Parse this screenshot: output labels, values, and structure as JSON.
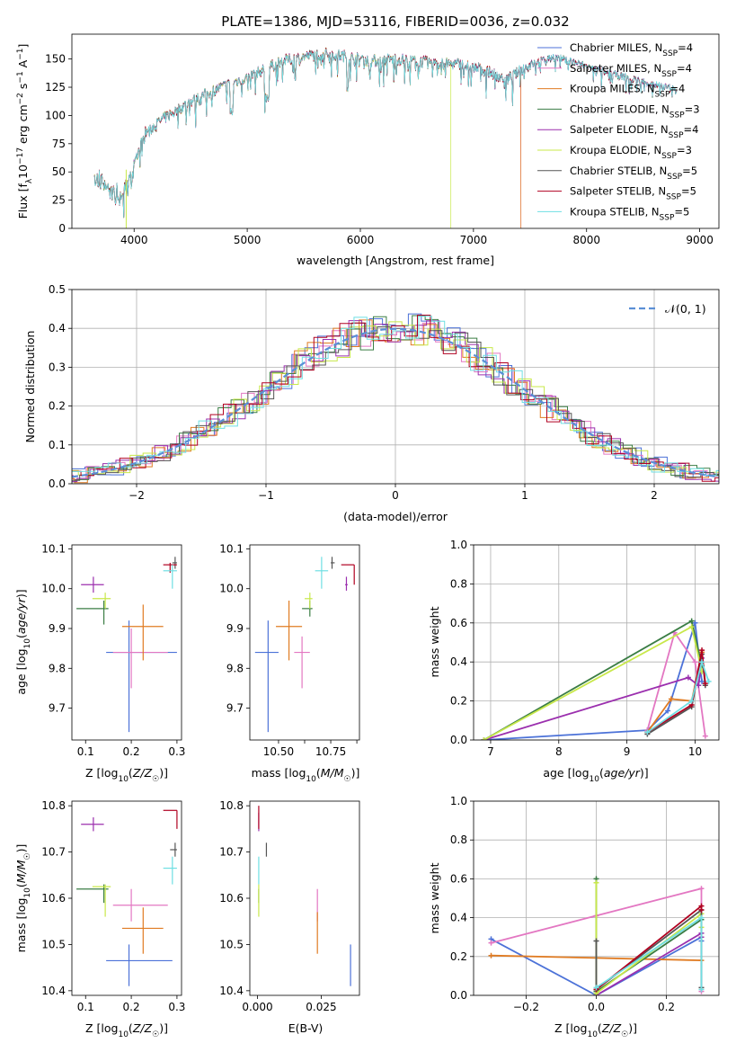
{
  "title": "PLATE=1386, MJD=53116, FIBERID=0036, z=0.032",
  "colors": {
    "Chabrier MILES": "#4c72d8",
    "Salpeter MILES": "#e377c2",
    "Kroupa MILES": "#e07b22",
    "Chabrier ELODIE": "#3a7d44",
    "Salpeter ELODIE": "#9b2fae",
    "Kroupa ELODIE": "#c8e84a",
    "Chabrier STELIB": "#555555",
    "Salpeter STELIB": "#b00020",
    "Kroupa STELIB": "#6fdfe3",
    "normal": "#5b8fd6"
  },
  "chart_data": [
    {
      "id": "spectrum",
      "type": "line",
      "title": "PLATE=1386, MJD=53116, FIBERID=0036, z=0.032",
      "xlabel": "wavelength [Angstrom, rest frame]",
      "ylabel": "Flux [f_λ 10^-17 erg cm^-2 s^-1 A^-1]",
      "xlim": [
        3450,
        9170
      ],
      "ylim": [
        0,
        172
      ],
      "xticks": [
        4000,
        5000,
        6000,
        7000,
        8000,
        9000
      ],
      "yticks": [
        0,
        25,
        50,
        75,
        100,
        125,
        150
      ],
      "legend_position": "right",
      "legend": [
        {
          "label": "Chabrier MILES, N_SSP=4",
          "series": "Chabrier MILES"
        },
        {
          "label": "Salpeter MILES, N_SSP=4",
          "series": "Salpeter MILES"
        },
        {
          "label": "Kroupa MILES, N_SSP=4",
          "series": "Kroupa MILES"
        },
        {
          "label": "Chabrier ELODIE, N_SSP=3",
          "series": "Chabrier ELODIE"
        },
        {
          "label": "Salpeter ELODIE, N_SSP=4",
          "series": "Salpeter ELODIE"
        },
        {
          "label": "Kroupa ELODIE, N_SSP=3",
          "series": "Kroupa ELODIE"
        },
        {
          "label": "Chabrier STELIB, N_SSP=5",
          "series": "Chabrier STELIB"
        },
        {
          "label": "Salpeter STELIB, N_SSP=5",
          "series": "Salpeter STELIB"
        },
        {
          "label": "Kroupa STELIB, N_SSP=5",
          "series": "Kroupa STELIB"
        }
      ],
      "continuum": {
        "x": [
          3650,
          3700,
          3800,
          3900,
          4000,
          4100,
          4300,
          4500,
          4700,
          4900,
          5100,
          5300,
          5500,
          5700,
          5900,
          6100,
          6300,
          6500,
          6700,
          6900,
          7100,
          7300,
          7500,
          7700,
          7900,
          8100,
          8300,
          8500,
          8700,
          8800
        ],
        "y": [
          52,
          48,
          40,
          35,
          58,
          85,
          100,
          112,
          122,
          130,
          138,
          148,
          152,
          155,
          152,
          148,
          150,
          148,
          146,
          145,
          140,
          132,
          145,
          152,
          147,
          140,
          135,
          130,
          125,
          122
        ]
      },
      "truncations": [
        {
          "series": "Kroupa ELODIE",
          "x_end": 6800
        },
        {
          "series": "Kroupa MILES",
          "x_end": 7420
        },
        {
          "series": "Salpeter MILES",
          "x_end": 7420
        },
        {
          "series": "Kroupa ELODIE",
          "x_start": 3930
        }
      ]
    },
    {
      "id": "residuals",
      "type": "line",
      "xlabel": "(data-model)/error",
      "ylabel": "Normed distribution",
      "xlim": [
        -2.5,
        2.5
      ],
      "ylim": [
        0,
        0.5
      ],
      "xticks": [
        -2,
        -1,
        0,
        1,
        2
      ],
      "yticks": [
        0.0,
        0.1,
        0.2,
        0.3,
        0.4,
        0.5
      ],
      "grid": true,
      "legend_position": "top-right",
      "legend": [
        {
          "label": "N(0,1)",
          "series": "normal"
        }
      ],
      "bin_width": 0.1
    },
    {
      "id": "age-vs-Z",
      "type": "scatter",
      "xlabel": "Z [log10(Z/Z☉)]",
      "ylabel": "age [log10(age/yr)]",
      "xlim": [
        0.07,
        0.31
      ],
      "ylim": [
        9.62,
        10.11
      ],
      "xticks": [
        0.1,
        0.2,
        0.3
      ],
      "yticks": [
        9.7,
        9.8,
        9.9,
        10.0,
        10.1
      ],
      "points": [
        {
          "series": "Chabrier MILES",
          "x": 0.195,
          "y": 9.84,
          "xerr": [
            0.145,
            0.3
          ],
          "yerr": [
            9.64,
            9.92
          ]
        },
        {
          "series": "Salpeter MILES",
          "x": 0.2,
          "y": 9.84,
          "xerr": [
            0.16,
            0.28
          ],
          "yerr": [
            9.75,
            9.9
          ]
        },
        {
          "series": "Kroupa MILES",
          "x": 0.226,
          "y": 9.905,
          "xerr": [
            0.18,
            0.27
          ],
          "yerr": [
            9.82,
            9.96
          ]
        },
        {
          "series": "Chabrier ELODIE",
          "x": 0.14,
          "y": 9.95,
          "xerr": [
            0.08,
            0.15
          ],
          "yerr": [
            9.91,
            9.97
          ]
        },
        {
          "series": "Salpeter ELODIE",
          "x": 0.117,
          "y": 10.01,
          "xerr": [
            0.09,
            0.14
          ],
          "yerr": [
            9.99,
            10.03
          ]
        },
        {
          "series": "Kroupa ELODIE",
          "x": 0.143,
          "y": 9.975,
          "xerr": [
            0.115,
            0.155
          ],
          "yerr": [
            9.95,
            9.99
          ]
        },
        {
          "series": "Chabrier STELIB",
          "x": 0.296,
          "y": 10.065,
          "xerr": [
            0.29,
            0.3
          ],
          "yerr": [
            10.05,
            10.08
          ]
        },
        {
          "series": "Salpeter STELIB",
          "x": 0.285,
          "y": 10.06,
          "xerr": [
            0.27,
            0.3
          ],
          "yerr": [
            10.04,
            10.065
          ]
        },
        {
          "series": "Kroupa STELIB",
          "x": 0.29,
          "y": 10.045,
          "xerr": [
            0.27,
            0.3
          ],
          "yerr": [
            10.0,
            10.06
          ]
        }
      ]
    },
    {
      "id": "age-vs-mass",
      "type": "scatter",
      "xlabel": "mass [log10(M/M☉)]",
      "xlim": [
        10.39,
        10.81
      ],
      "ylim": [
        9.62,
        10.11
      ],
      "xticks": [
        10.5,
        10.6,
        10.7,
        10.8
      ],
      "xticklabels": [
        "10.50",
        "",
        "10.75",
        ""
      ],
      "yticks": [
        9.7,
        9.8,
        9.9,
        10.0,
        10.1
      ],
      "points": [
        {
          "series": "Chabrier MILES",
          "x": 10.46,
          "y": 9.84,
          "xerr": [
            10.41,
            10.5
          ],
          "yerr": [
            9.64,
            9.92
          ]
        },
        {
          "series": "Salpeter MILES",
          "x": 10.59,
          "y": 9.84,
          "xerr": [
            10.56,
            10.62
          ],
          "yerr": [
            9.75,
            9.88
          ]
        },
        {
          "series": "Kroupa MILES",
          "x": 10.54,
          "y": 9.905,
          "xerr": [
            10.49,
            10.59
          ],
          "yerr": [
            9.82,
            9.97
          ]
        },
        {
          "series": "Chabrier ELODIE",
          "x": 10.62,
          "y": 9.95,
          "xerr": [
            10.59,
            10.63
          ],
          "yerr": [
            9.93,
            9.97
          ]
        },
        {
          "series": "Salpeter ELODIE",
          "x": 10.76,
          "y": 10.01,
          "xerr": [
            10.755,
            10.765
          ],
          "yerr": [
            9.995,
            10.03
          ]
        },
        {
          "series": "Kroupa ELODIE",
          "x": 10.62,
          "y": 9.975,
          "xerr": [
            10.6,
            10.63
          ],
          "yerr": [
            9.95,
            9.99
          ]
        },
        {
          "series": "Chabrier STELIB",
          "x": 10.705,
          "y": 10.065,
          "xerr": [
            10.7,
            10.715
          ],
          "yerr": [
            10.05,
            10.08
          ]
        },
        {
          "series": "Salpeter STELIB",
          "x": 10.79,
          "y": 10.06,
          "xerr": [
            10.74,
            10.79
          ],
          "yerr": [
            10.01,
            10.06
          ]
        },
        {
          "series": "Kroupa STELIB",
          "x": 10.665,
          "y": 10.045,
          "xerr": [
            10.64,
            10.69
          ],
          "yerr": [
            10.0,
            10.08
          ]
        }
      ]
    },
    {
      "id": "mass-weight-vs-age",
      "type": "line",
      "xlabel": "age [log10(age/yr)]",
      "ylabel": "mass weight",
      "xlim": [
        6.75,
        10.35
      ],
      "ylim": [
        0,
        1
      ],
      "xticks": [
        7,
        8,
        9,
        10
      ],
      "yticks": [
        0.0,
        0.2,
        0.4,
        0.6,
        0.8,
        1.0
      ],
      "grid": true,
      "series": [
        {
          "name": "Chabrier MILES",
          "x": [
            6.9,
            9.3,
            9.6,
            10.0,
            10.1
          ],
          "y": [
            0.0,
            0.05,
            0.15,
            0.6,
            0.3
          ]
        },
        {
          "name": "Salpeter MILES",
          "x": [
            9.3,
            9.7,
            10.0,
            10.15
          ],
          "y": [
            0.05,
            0.55,
            0.4,
            0.02
          ]
        },
        {
          "name": "Kroupa MILES",
          "x": [
            9.3,
            9.65,
            9.95,
            10.1
          ],
          "y": [
            0.04,
            0.21,
            0.2,
            0.45
          ]
        },
        {
          "name": "Chabrier ELODIE",
          "x": [
            6.9,
            9.95,
            10.1
          ],
          "y": [
            0.0,
            0.61,
            0.38
          ]
        },
        {
          "name": "Salpeter ELODIE",
          "x": [
            6.9,
            9.9,
            10.05,
            10.1
          ],
          "y": [
            0.0,
            0.32,
            0.28,
            0.42
          ]
        },
        {
          "name": "Kroupa ELODIE",
          "x": [
            6.9,
            9.95,
            10.1
          ],
          "y": [
            0.0,
            0.58,
            0.35
          ]
        },
        {
          "name": "Chabrier STELIB",
          "x": [
            9.3,
            9.95,
            10.1,
            10.15
          ],
          "y": [
            0.03,
            0.17,
            0.44,
            0.28
          ]
        },
        {
          "name": "Salpeter STELIB",
          "x": [
            9.3,
            9.95,
            10.1,
            10.15
          ],
          "y": [
            0.04,
            0.18,
            0.46,
            0.29
          ]
        },
        {
          "name": "Kroupa STELIB",
          "x": [
            9.3,
            9.95,
            10.1,
            10.2
          ],
          "y": [
            0.04,
            0.2,
            0.4,
            0.3
          ]
        }
      ]
    },
    {
      "id": "mass-vs-Z",
      "type": "scatter",
      "xlabel": "Z [log10(Z/Z☉)]",
      "ylabel": "mass [log10(M/M☉)]",
      "xlim": [
        0.07,
        0.31
      ],
      "ylim": [
        10.39,
        10.81
      ],
      "xticks": [
        0.1,
        0.2,
        0.3
      ],
      "yticks": [
        10.4,
        10.5,
        10.6,
        10.7,
        10.8
      ],
      "points": [
        {
          "series": "Chabrier MILES",
          "x": 0.195,
          "y": 10.465,
          "xerr": [
            0.145,
            0.29
          ],
          "yerr": [
            10.41,
            10.5
          ]
        },
        {
          "series": "Salpeter MILES",
          "x": 0.2,
          "y": 10.585,
          "xerr": [
            0.16,
            0.28
          ],
          "yerr": [
            10.55,
            10.62
          ]
        },
        {
          "series": "Kroupa MILES",
          "x": 0.226,
          "y": 10.535,
          "xerr": [
            0.18,
            0.27
          ],
          "yerr": [
            10.48,
            10.58
          ]
        },
        {
          "series": "Chabrier ELODIE",
          "x": 0.14,
          "y": 10.62,
          "xerr": [
            0.08,
            0.15
          ],
          "yerr": [
            10.59,
            10.63
          ]
        },
        {
          "series": "Salpeter ELODIE",
          "x": 0.117,
          "y": 10.76,
          "xerr": [
            0.09,
            0.14
          ],
          "yerr": [
            10.745,
            10.775
          ]
        },
        {
          "series": "Kroupa ELODIE",
          "x": 0.143,
          "y": 10.625,
          "xerr": [
            0.115,
            0.155
          ],
          "yerr": [
            10.56,
            10.63
          ]
        },
        {
          "series": "Chabrier STELIB",
          "x": 0.296,
          "y": 10.705,
          "xerr": [
            0.285,
            0.3
          ],
          "yerr": [
            10.69,
            10.72
          ]
        },
        {
          "series": "Salpeter STELIB",
          "x": 0.3,
          "y": 10.79,
          "xerr": [
            0.27,
            0.3
          ],
          "yerr": [
            10.75,
            10.79
          ]
        },
        {
          "series": "Kroupa STELIB",
          "x": 0.29,
          "y": 10.665,
          "xerr": [
            0.27,
            0.3
          ],
          "yerr": [
            10.63,
            10.69
          ]
        }
      ]
    },
    {
      "id": "mass-vs-EBV",
      "type": "scatter",
      "xlabel": "E(B-V)",
      "xlim": [
        -0.003,
        0.04
      ],
      "ylim": [
        10.39,
        10.81
      ],
      "xticks": [
        0.0,
        0.025
      ],
      "xticklabels": [
        "0.000",
        "0.025"
      ],
      "yticks": [
        10.4,
        10.5,
        10.6,
        10.7,
        10.8
      ],
      "points": [
        {
          "series": "Chabrier MILES",
          "x": 0.0365,
          "y": 10.45,
          "yerr": [
            10.41,
            10.5
          ]
        },
        {
          "series": "Salpeter MILES",
          "x": 0.0235,
          "y": 10.58,
          "yerr": [
            10.55,
            10.62
          ]
        },
        {
          "series": "Kroupa MILES",
          "x": 0.0235,
          "y": 10.52,
          "yerr": [
            10.48,
            10.57
          ]
        },
        {
          "series": "Chabrier ELODIE",
          "x": 0.0005,
          "y": 10.6,
          "yerr": [
            10.59,
            10.62
          ]
        },
        {
          "series": "Salpeter ELODIE",
          "x": 0.0005,
          "y": 10.77,
          "yerr": [
            10.745,
            10.785
          ]
        },
        {
          "series": "Kroupa ELODIE",
          "x": 0.0005,
          "y": 10.6,
          "yerr": [
            10.56,
            10.63
          ]
        },
        {
          "series": "Chabrier STELIB",
          "x": 0.0035,
          "y": 10.705,
          "yerr": [
            10.69,
            10.72
          ]
        },
        {
          "series": "Salpeter STELIB",
          "x": 0.0005,
          "y": 10.79,
          "yerr": [
            10.75,
            10.8
          ]
        },
        {
          "series": "Kroupa STELIB",
          "x": 0.0005,
          "y": 10.67,
          "yerr": [
            10.63,
            10.69
          ]
        }
      ]
    },
    {
      "id": "mass-weight-vs-Z",
      "type": "line",
      "xlabel": "Z [log10(Z/Z☉)]",
      "ylabel": "mass weight",
      "xlim": [
        -0.35,
        0.35
      ],
      "ylim": [
        0,
        1
      ],
      "xticks": [
        -0.2,
        0.0,
        0.2
      ],
      "xticklabels": [
        "−0.2",
        "0.0",
        "0.2"
      ],
      "yticks": [
        0.0,
        0.2,
        0.4,
        0.6,
        0.8,
        1.0
      ],
      "grid": true,
      "series": [
        {
          "name": "Chabrier MILES",
          "x": [
            -0.3,
            0.0,
            0.3,
            0.3
          ],
          "y": [
            0.29,
            0.0,
            0.3,
            0.28
          ]
        },
        {
          "name": "Salpeter MILES",
          "x": [
            -0.3,
            0.0,
            0.3,
            0.3
          ],
          "y": [
            0.27,
            0.41,
            0.55,
            0.02
          ]
        },
        {
          "name": "Kroupa MILES",
          "x": [
            -0.3,
            0.3
          ],
          "y": [
            0.205,
            0.18
          ]
        },
        {
          "name": "Chabrier ELODIE",
          "x": [
            0.0,
            0.0,
            0.3,
            0.3
          ],
          "y": [
            0.6,
            0.02,
            0.39,
            0.3
          ]
        },
        {
          "name": "Salpeter ELODIE",
          "x": [
            0.0,
            0.3,
            0.3
          ],
          "y": [
            0.0,
            0.32,
            0.3
          ]
        },
        {
          "name": "Kroupa ELODIE",
          "x": [
            0.0,
            0.0,
            0.3,
            0.3
          ],
          "y": [
            0.58,
            0.01,
            0.42,
            0.35
          ]
        },
        {
          "name": "Chabrier STELIB",
          "x": [
            0.0,
            0.0,
            0.3,
            0.3
          ],
          "y": [
            0.28,
            0.03,
            0.44,
            0.04
          ]
        },
        {
          "name": "Salpeter STELIB",
          "x": [
            0.0,
            0.3,
            0.3
          ],
          "y": [
            0.03,
            0.46,
            0.44
          ]
        },
        {
          "name": "Kroupa STELIB",
          "x": [
            0.0,
            0.3,
            0.3
          ],
          "y": [
            0.04,
            0.4,
            0.03
          ]
        }
      ]
    }
  ]
}
